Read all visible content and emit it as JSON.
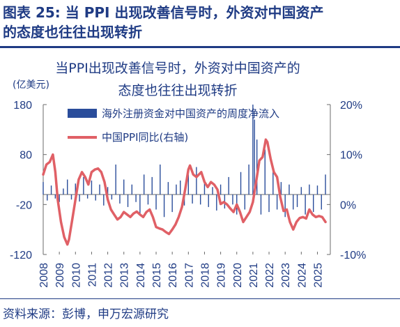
{
  "figure_title_line1": "图表 25: 当 PPI 出现改善信号时，外资对中国资产",
  "figure_title_line2": "的态度也往往出现转折",
  "source": "资料来源：彭博，申万宏源研究",
  "colors": {
    "bars": "#2a4d9b",
    "line": "#e06066",
    "text": "#1f3b84",
    "axis": "#6b6b6b"
  },
  "chart_data": {
    "type": "bar+line",
    "title_line1": "当PPI出现改善信号时，外资对中国资产的",
    "title_line2": "态度也往往出现转折",
    "left_unit": "(亿美元)",
    "y_left": {
      "ticks": [
        "180",
        "80",
        "-20",
        "-120"
      ],
      "values": [
        180,
        80,
        -20,
        -120
      ],
      "ylim": [
        -120,
        180
      ]
    },
    "y_right": {
      "ticks": [
        "20%",
        "10%",
        "0%",
        "-10%"
      ],
      "values": [
        20,
        10,
        0,
        -10
      ],
      "ylim": [
        -10,
        20
      ]
    },
    "x_ticks": [
      "2008",
      "2009",
      "2010",
      "2011",
      "2012",
      "2013",
      "2014",
      "2015",
      "2016",
      "2017",
      "2018",
      "2019",
      "2020",
      "2021",
      "2022",
      "2023",
      "2024",
      "2025"
    ],
    "xlim": [
      2008,
      2025.8
    ],
    "grid": false,
    "legend_position": "top",
    "series": [
      {
        "name": "海外注册资金对中国资产的周度净流入",
        "kind": "bar",
        "axis": "left",
        "x": [
          2008.0,
          2008.25,
          2008.5,
          2008.75,
          2009.0,
          2009.25,
          2009.5,
          2009.75,
          2010.0,
          2010.25,
          2010.5,
          2010.75,
          2011.0,
          2011.25,
          2011.5,
          2011.75,
          2012.0,
          2012.25,
          2012.5,
          2012.75,
          2013.0,
          2013.25,
          2013.5,
          2013.75,
          2014.0,
          2014.25,
          2014.5,
          2014.75,
          2015.0,
          2015.25,
          2015.5,
          2015.75,
          2016.0,
          2016.25,
          2016.5,
          2016.75,
          2017.0,
          2017.25,
          2017.5,
          2017.75,
          2018.0,
          2018.25,
          2018.5,
          2018.75,
          2019.0,
          2019.25,
          2019.5,
          2019.75,
          2020.0,
          2020.25,
          2020.5,
          2020.75,
          2021.0,
          2021.1,
          2021.25,
          2021.5,
          2021.75,
          2022.0,
          2022.25,
          2022.5,
          2022.75,
          2023.0,
          2023.25,
          2023.5,
          2023.75,
          2024.0,
          2024.25,
          2024.5,
          2024.75,
          2025.0,
          2025.25,
          2025.5
        ],
        "values": [
          25,
          -12,
          18,
          -8,
          -15,
          12,
          30,
          -10,
          22,
          -14,
          35,
          -8,
          28,
          -12,
          20,
          -22,
          15,
          -10,
          60,
          -18,
          30,
          -25,
          20,
          -15,
          -42,
          40,
          -20,
          35,
          -30,
          60,
          -45,
          25,
          -35,
          20,
          28,
          -22,
          40,
          -18,
          55,
          -20,
          30,
          -25,
          15,
          -32,
          20,
          -28,
          35,
          -20,
          -40,
          45,
          -30,
          60,
          180,
          150,
          110,
          -40,
          90,
          -35,
          50,
          -30,
          25,
          -45,
          20,
          -30,
          -25,
          15,
          -40,
          20,
          -35,
          18,
          -30,
          40
        ]
      },
      {
        "name": "中国PPI同比(右轴)",
        "kind": "line",
        "axis": "right",
        "x": [
          2008.0,
          2008.2,
          2008.4,
          2008.6,
          2008.75,
          2008.9,
          2009.1,
          2009.3,
          2009.5,
          2009.6,
          2009.8,
          2010.0,
          2010.2,
          2010.4,
          2010.6,
          2010.8,
          2011.0,
          2011.2,
          2011.4,
          2011.6,
          2011.8,
          2012.0,
          2012.2,
          2012.4,
          2012.6,
          2012.8,
          2013.0,
          2013.2,
          2013.4,
          2013.6,
          2013.8,
          2014.0,
          2014.2,
          2014.4,
          2014.6,
          2014.8,
          2015.0,
          2015.2,
          2015.4,
          2015.6,
          2015.8,
          2016.0,
          2016.2,
          2016.4,
          2016.6,
          2016.8,
          2017.0,
          2017.1,
          2017.3,
          2017.5,
          2017.8,
          2018.0,
          2018.2,
          2018.4,
          2018.6,
          2018.8,
          2019.0,
          2019.2,
          2019.4,
          2019.6,
          2019.8,
          2020.0,
          2020.2,
          2020.4,
          2020.6,
          2020.8,
          2021.0,
          2021.2,
          2021.4,
          2021.6,
          2021.8,
          2021.9,
          2022.1,
          2022.3,
          2022.5,
          2022.7,
          2022.9,
          2023.1,
          2023.3,
          2023.5,
          2023.7,
          2023.9,
          2024.1,
          2024.3,
          2024.5,
          2024.7,
          2024.9,
          2025.1,
          2025.3,
          2025.5
        ],
        "values": [
          6.0,
          8.0,
          8.5,
          10.0,
          6.5,
          1.0,
          -3.5,
          -6.5,
          -8.0,
          -7.0,
          -3.0,
          1.0,
          5.0,
          6.5,
          5.5,
          4.0,
          6.5,
          7.0,
          7.2,
          6.5,
          4.5,
          1.0,
          -1.0,
          -2.0,
          -3.0,
          -2.5,
          -1.5,
          -2.0,
          -2.5,
          -1.8,
          -1.4,
          -2.0,
          -2.5,
          -1.5,
          -1.0,
          -2.5,
          -4.5,
          -4.8,
          -5.0,
          -5.5,
          -5.9,
          -5.0,
          -4.0,
          -2.5,
          -0.5,
          3.0,
          7.0,
          7.8,
          6.0,
          5.5,
          6.5,
          4.5,
          3.5,
          4.5,
          4.0,
          3.0,
          0.1,
          0.5,
          0.0,
          -0.8,
          -1.5,
          0.0,
          -1.5,
          -3.5,
          -2.5,
          -1.5,
          0.5,
          4.5,
          8.8,
          9.5,
          13.0,
          12.5,
          9.1,
          6.5,
          5.5,
          1.5,
          -1.3,
          -1.0,
          -3.5,
          -5.0,
          -3.5,
          -2.7,
          -2.5,
          -2.8,
          -1.0,
          -2.0,
          -2.5,
          -2.3,
          -2.5,
          -3.5
        ]
      }
    ]
  }
}
